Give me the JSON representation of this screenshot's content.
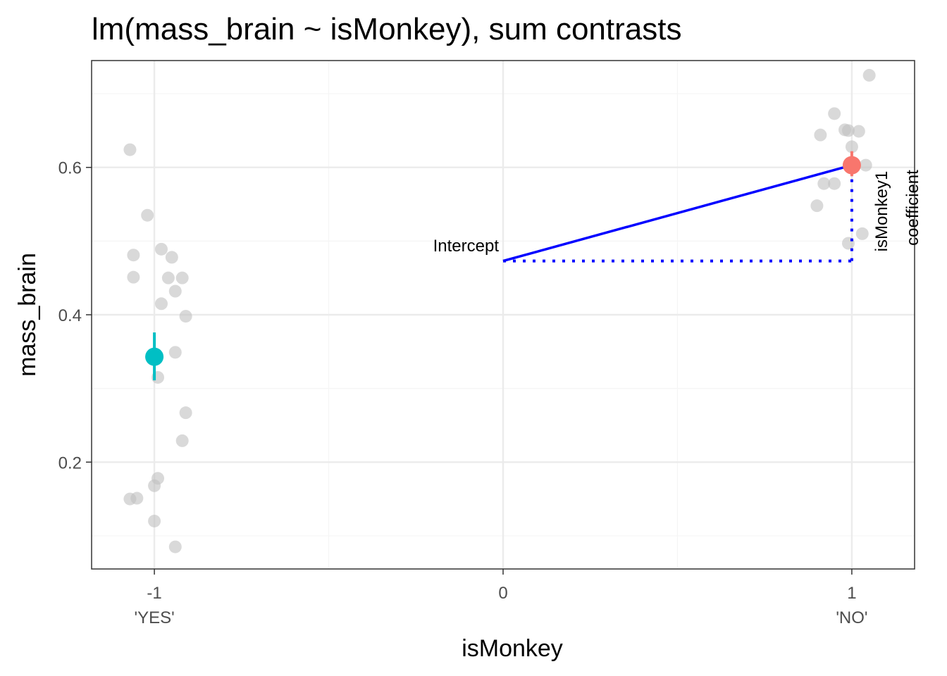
{
  "chart_data": {
    "type": "scatter",
    "title": "lm(mass_brain ~ isMonkey), sum contrasts",
    "xlabel": "isMonkey",
    "ylabel": "mass_brain",
    "xlim": [
      -1.18,
      1.18
    ],
    "ylim": [
      0.055,
      0.745
    ],
    "x_ticks": [
      {
        "value": -1,
        "label": "-1",
        "sublabel": "'YES'"
      },
      {
        "value": 0,
        "label": "0",
        "sublabel": ""
      },
      {
        "value": 1,
        "label": "1",
        "sublabel": "'NO'"
      }
    ],
    "y_ticks": [
      {
        "value": 0.2,
        "label": "0.2"
      },
      {
        "value": 0.4,
        "label": "0.4"
      },
      {
        "value": 0.6,
        "label": "0.6"
      }
    ],
    "x_minor_grid": [
      -0.5,
      0.5
    ],
    "y_minor_grid": [
      0.1,
      0.3,
      0.5,
      0.7
    ],
    "grid": true,
    "legend": "none",
    "points": [
      {
        "x": -1.07,
        "y": 0.624
      },
      {
        "x": -1.02,
        "y": 0.535
      },
      {
        "x": -0.98,
        "y": 0.489
      },
      {
        "x": -1.06,
        "y": 0.481
      },
      {
        "x": -0.95,
        "y": 0.478
      },
      {
        "x": -1.06,
        "y": 0.451
      },
      {
        "x": -0.96,
        "y": 0.45
      },
      {
        "x": -0.92,
        "y": 0.45
      },
      {
        "x": -0.94,
        "y": 0.432
      },
      {
        "x": -0.98,
        "y": 0.415
      },
      {
        "x": -0.91,
        "y": 0.398
      },
      {
        "x": -0.94,
        "y": 0.349
      },
      {
        "x": -0.99,
        "y": 0.315
      },
      {
        "x": -0.91,
        "y": 0.267
      },
      {
        "x": -0.92,
        "y": 0.229
      },
      {
        "x": -0.99,
        "y": 0.178
      },
      {
        "x": -1.0,
        "y": 0.168
      },
      {
        "x": -1.07,
        "y": 0.15
      },
      {
        "x": -1.05,
        "y": 0.151
      },
      {
        "x": -1.0,
        "y": 0.12
      },
      {
        "x": -0.94,
        "y": 0.085
      },
      {
        "x": 1.05,
        "y": 0.725
      },
      {
        "x": 0.95,
        "y": 0.673
      },
      {
        "x": 0.98,
        "y": 0.651
      },
      {
        "x": 0.99,
        "y": 0.65
      },
      {
        "x": 1.02,
        "y": 0.649
      },
      {
        "x": 0.91,
        "y": 0.644
      },
      {
        "x": 1.0,
        "y": 0.628
      },
      {
        "x": 1.04,
        "y": 0.603
      },
      {
        "x": 0.92,
        "y": 0.578
      },
      {
        "x": 0.95,
        "y": 0.578
      },
      {
        "x": 0.9,
        "y": 0.548
      },
      {
        "x": 1.03,
        "y": 0.51
      },
      {
        "x": 0.99,
        "y": 0.497
      }
    ],
    "group_means": [
      {
        "x": -1,
        "y": 0.343,
        "ci": [
          0.311,
          0.376
        ],
        "color": "#00BFC4"
      },
      {
        "x": 1,
        "y": 0.603,
        "ci": [
          0.588,
          0.622
        ],
        "color": "#F8766D"
      }
    ],
    "intercept": {
      "x": 0,
      "y": 0.473
    },
    "annotations": {
      "intercept": "Intercept",
      "coef_line1": "isMonkey1",
      "coef_line2": "coefficient"
    },
    "colors": {
      "points": "#bfbfbf",
      "line": "#0000ff",
      "grid_major": "#ebebeb",
      "grid_minor": "#f5f5f5",
      "panel_border": "#333333"
    }
  }
}
